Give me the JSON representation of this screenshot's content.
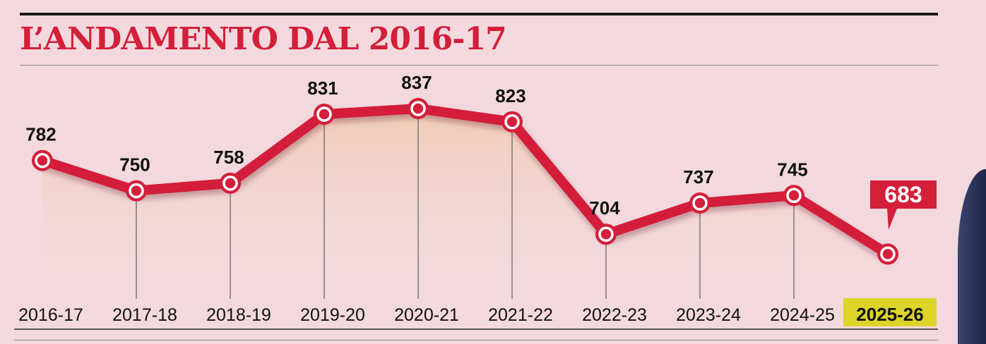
{
  "title": "L’ANDAMENTO DAL 2016-17",
  "colors": {
    "accent": "#d41f3a",
    "highlight": "#ddd42a",
    "text": "#111111"
  },
  "chart_data": {
    "type": "line",
    "title": "L’ANDAMENTO DAL 2016-17",
    "categories": [
      "2016-17",
      "2017-18",
      "2018-19",
      "2019-20",
      "2020-21",
      "2021-22",
      "2022-23",
      "2023-24",
      "2024-25",
      "2025-26"
    ],
    "series": [
      {
        "values": [
          782,
          750,
          758,
          831,
          837,
          823,
          704,
          737,
          745,
          683
        ]
      }
    ],
    "value_labels": [
      "782",
      "750",
      "758",
      "831",
      "837",
      "823",
      "704",
      "737",
      "745",
      "683"
    ],
    "highlight_category": "2025-26",
    "ylim": [
      600,
      860
    ],
    "grid": false
  }
}
